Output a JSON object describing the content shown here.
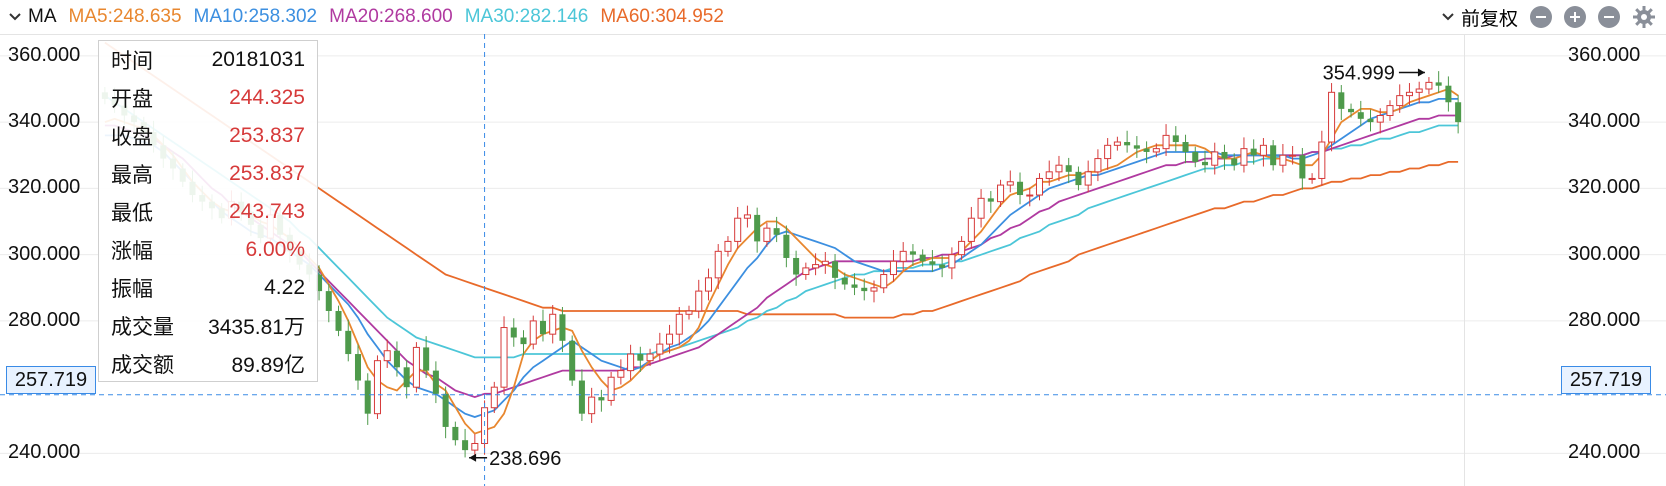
{
  "header": {
    "indicator": "MA",
    "ma": [
      {
        "label": "MA5:248.635",
        "color": "#e8872f"
      },
      {
        "label": "MA10:258.302",
        "color": "#3c8fe0"
      },
      {
        "label": "MA20:268.600",
        "color": "#b03aa0"
      },
      {
        "label": "MA30:282.146",
        "color": "#4cc6d8"
      },
      {
        "label": "MA60:304.952",
        "color": "#e86a2a"
      }
    ],
    "adjust_label": "前复权"
  },
  "tooltip": [
    {
      "k": "时间",
      "v": "20181031",
      "red": false
    },
    {
      "k": "开盘",
      "v": "244.325",
      "red": true
    },
    {
      "k": "收盘",
      "v": "253.837",
      "red": true
    },
    {
      "k": "最高",
      "v": "253.837",
      "red": true
    },
    {
      "k": "最低",
      "v": "243.743",
      "red": true
    },
    {
      "k": "涨幅",
      "v": "6.00%",
      "red": true
    },
    {
      "k": "振幅",
      "v": "4.22",
      "red": false
    },
    {
      "k": "成交量",
      "v": "3435.81万",
      "red": false
    },
    {
      "k": "成交额",
      "v": "89.89亿",
      "red": false
    }
  ],
  "crosshair": {
    "price": "257.719"
  },
  "annotations": {
    "high": "354.999",
    "low": "238.696"
  },
  "colors": {
    "up": "#d63a3a",
    "down": "#4e9a4b",
    "crosshair": "#3a8be6"
  },
  "chart_data": {
    "type": "candlestick",
    "ylim": [
      235,
      366
    ],
    "yticks": [
      "360.000",
      "340.000",
      "320.000",
      "300.000",
      "280.000",
      "240.000"
    ],
    "ytick_values": [
      360,
      340,
      320,
      300,
      280,
      240
    ],
    "series": {
      "close": [
        347,
        345,
        342,
        340,
        337,
        333,
        329,
        326,
        322,
        318,
        316,
        314,
        311,
        316,
        313,
        309,
        305,
        312,
        306,
        301,
        297,
        294,
        289,
        283,
        277,
        270,
        262,
        252,
        268,
        271,
        266,
        260,
        272,
        265,
        258,
        248,
        244,
        241,
        243,
        253.8,
        260,
        278,
        275,
        273,
        280,
        276,
        282,
        274,
        262,
        252,
        257,
        256,
        263,
        265,
        270,
        268,
        270,
        273,
        276,
        282,
        283,
        289,
        293,
        301,
        304,
        311,
        312,
        304,
        308,
        306,
        299,
        294,
        296,
        297,
        298,
        293,
        291,
        290,
        289,
        290,
        294,
        298,
        301,
        300,
        298,
        297,
        296,
        300,
        304,
        311,
        317,
        316,
        321,
        322,
        318,
        318,
        323,
        325,
        327,
        325,
        321,
        325,
        329,
        333,
        334,
        333,
        332,
        331,
        332,
        336,
        334,
        331,
        328,
        327,
        331,
        329,
        327,
        332,
        330,
        333,
        327,
        330,
        330,
        323,
        323,
        334,
        349,
        344,
        343,
        341,
        340,
        342,
        345,
        348,
        349,
        350,
        352,
        351,
        346,
        340
      ],
      "ma5": [
        340,
        341,
        340,
        339,
        338,
        336,
        333,
        330,
        326,
        322,
        319,
        316,
        314,
        313,
        313,
        312,
        310,
        309,
        307,
        305,
        302,
        299,
        296,
        291,
        286,
        280,
        273,
        266,
        262,
        260,
        259,
        262,
        265,
        265,
        261,
        259,
        254,
        249,
        246,
        247,
        248,
        252,
        260,
        270,
        274,
        276,
        277,
        278,
        277,
        271,
        266,
        262,
        259,
        260,
        262,
        265,
        268,
        270,
        271,
        272,
        274,
        278,
        285,
        291,
        297,
        302,
        305,
        308,
        310,
        310,
        308,
        305,
        302,
        299,
        297,
        296,
        294,
        293,
        292,
        291,
        290,
        292,
        295,
        297,
        298,
        299,
        299,
        299,
        301,
        304,
        307,
        311,
        315,
        318,
        319,
        320,
        322,
        322,
        323,
        324,
        324,
        325,
        325,
        326,
        327,
        329,
        331,
        332,
        333,
        333,
        333,
        333,
        333,
        332,
        330,
        329,
        329,
        330,
        331,
        330,
        329,
        329,
        328,
        327,
        327,
        330,
        335,
        340,
        342,
        344,
        344,
        343,
        343,
        344,
        346,
        347,
        348,
        349,
        350,
        348
      ],
      "ma10": [
        336,
        336,
        336,
        335,
        334,
        333,
        331,
        328,
        325,
        322,
        319,
        316,
        313,
        311,
        309,
        307,
        306,
        305,
        303,
        301,
        299,
        297,
        294,
        291,
        288,
        285,
        281,
        276,
        272,
        268,
        265,
        262,
        260,
        259,
        258,
        256,
        254,
        252,
        251,
        252,
        253,
        256,
        259,
        263,
        266,
        268,
        270,
        272,
        274,
        272,
        270,
        268,
        267,
        266,
        265,
        266,
        268,
        270,
        272,
        273,
        275,
        277,
        280,
        284,
        288,
        292,
        296,
        299,
        303,
        306,
        307,
        306,
        305,
        304,
        303,
        302,
        300,
        298,
        297,
        296,
        295,
        295,
        295,
        295,
        295,
        295,
        296,
        297,
        299,
        301,
        303,
        306,
        309,
        312,
        314,
        316,
        318,
        320,
        321,
        322,
        323,
        324,
        324,
        325,
        326,
        327,
        328,
        329,
        330,
        331,
        331,
        331,
        331,
        331,
        331,
        330,
        330,
        330,
        330,
        330,
        330,
        330,
        329,
        329,
        330,
        331,
        333,
        335,
        337,
        339,
        341,
        342,
        343,
        344,
        345,
        346,
        346,
        347,
        347,
        347
      ],
      "ma20": [
        339,
        339,
        338,
        337,
        336,
        335,
        333,
        331,
        329,
        326,
        323,
        320,
        318,
        315,
        313,
        311,
        309,
        307,
        305,
        303,
        301,
        298,
        295,
        292,
        289,
        286,
        283,
        280,
        277,
        274,
        271,
        268,
        266,
        264,
        263,
        261,
        259,
        258,
        257,
        258,
        258,
        259,
        260,
        261,
        262,
        263,
        264,
        265,
        265,
        265,
        265,
        265,
        265,
        265,
        266,
        266,
        267,
        268,
        269,
        270,
        271,
        272,
        274,
        276,
        278,
        280,
        282,
        284,
        287,
        289,
        291,
        293,
        295,
        296,
        297,
        298,
        298,
        298,
        298,
        298,
        298,
        298,
        298,
        298,
        299,
        299,
        300,
        300,
        301,
        302,
        303,
        305,
        306,
        308,
        309,
        311,
        313,
        314,
        316,
        317,
        318,
        319,
        320,
        321,
        322,
        323,
        324,
        325,
        326,
        327,
        327,
        328,
        328,
        329,
        329,
        329,
        330,
        330,
        330,
        330,
        330,
        330,
        330,
        330,
        331,
        331,
        332,
        333,
        334,
        335,
        336,
        337,
        338,
        339,
        340,
        341,
        341,
        342,
        342,
        342
      ],
      "ma30": [
        348,
        346,
        344,
        342,
        340,
        338,
        336,
        334,
        332,
        330,
        328,
        326,
        324,
        322,
        320,
        318,
        316,
        314,
        312,
        310,
        307,
        305,
        302,
        299,
        296,
        293,
        290,
        287,
        284,
        281,
        279,
        277,
        275,
        274,
        273,
        272,
        271,
        270,
        269,
        269,
        269,
        269,
        269,
        270,
        270,
        270,
        270,
        270,
        270,
        270,
        270,
        270,
        270,
        270,
        270,
        270,
        270,
        271,
        271,
        272,
        273,
        274,
        275,
        276,
        277,
        278,
        280,
        281,
        283,
        284,
        286,
        287,
        289,
        290,
        291,
        292,
        293,
        294,
        294,
        295,
        295,
        296,
        296,
        296,
        297,
        297,
        297,
        298,
        298,
        299,
        300,
        301,
        302,
        303,
        305,
        306,
        307,
        309,
        310,
        311,
        312,
        314,
        315,
        316,
        317,
        318,
        319,
        320,
        321,
        322,
        323,
        324,
        325,
        326,
        326,
        327,
        327,
        328,
        328,
        329,
        329,
        330,
        330,
        330,
        331,
        331,
        332,
        332,
        333,
        333,
        334,
        335,
        335,
        336,
        337,
        337,
        338,
        339,
        339,
        339
      ],
      "ma60": [
        364,
        362,
        360,
        358,
        356,
        354,
        352,
        350,
        348,
        346,
        344,
        342,
        340,
        338,
        336,
        334,
        332,
        330,
        328,
        326,
        324,
        322,
        320,
        318,
        316,
        314,
        312,
        310,
        308,
        306,
        304,
        302,
        300,
        298,
        296,
        294,
        293,
        292,
        291,
        290,
        289,
        288,
        287,
        286,
        285,
        284,
        284,
        283,
        283,
        283,
        283,
        283,
        283,
        283,
        283,
        283,
        283,
        283,
        283,
        283,
        283,
        283,
        283,
        283,
        283,
        283,
        282,
        282,
        282,
        282,
        282,
        282,
        282,
        282,
        282,
        282,
        281,
        281,
        281,
        281,
        281,
        281,
        282,
        282,
        283,
        283,
        284,
        285,
        286,
        287,
        288,
        289,
        290,
        291,
        292,
        294,
        295,
        296,
        297,
        298,
        300,
        301,
        302,
        303,
        304,
        305,
        306,
        307,
        308,
        309,
        310,
        311,
        312,
        313,
        314,
        314,
        315,
        316,
        316,
        317,
        318,
        318,
        319,
        320,
        320,
        321,
        322,
        322,
        323,
        323,
        324,
        324,
        325,
        325,
        326,
        326,
        327,
        327,
        328,
        328
      ]
    }
  }
}
